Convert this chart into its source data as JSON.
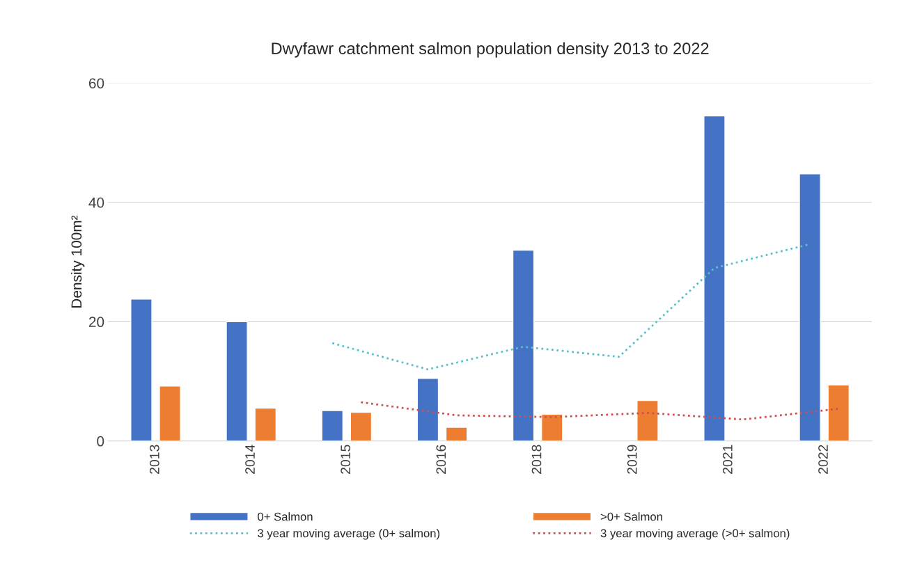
{
  "chart_data": {
    "type": "bar",
    "title": "Dwyfawr catchment salmon population density 2013 to 2022",
    "ylabel": "Density 100m²",
    "categories": [
      "2013",
      "2014",
      "2015",
      "2016",
      "2018",
      "2019",
      "2021",
      "2022"
    ],
    "series": [
      {
        "name": "0+ Salmon",
        "color": "#4472c4",
        "values": [
          23.8,
          20.0,
          5.1,
          10.5,
          32.0,
          null,
          54.5,
          44.8
        ]
      },
      {
        "name": ">0+ Salmon",
        "color": "#ed7d31",
        "values": [
          9.2,
          5.5,
          4.8,
          2.3,
          4.5,
          6.8,
          null,
          9.4
        ]
      },
      {
        "name": "3 year moving average (0+ salmon)",
        "type": "line",
        "line_style": "dotted",
        "color": "#5bc0cd",
        "values": [
          null,
          null,
          16.4,
          12.0,
          15.8,
          14.1,
          29.0,
          33.0
        ]
      },
      {
        "name": "3 year moving average (>0+ salmon)",
        "type": "line",
        "line_style": "dotted",
        "color": "#d05050",
        "values": [
          null,
          null,
          6.5,
          4.3,
          4.0,
          4.7,
          3.6,
          5.4
        ]
      }
    ],
    "ylim": [
      0,
      60
    ],
    "yticks": [
      0,
      20,
      40,
      60
    ],
    "grid": "y",
    "legend": "bottom"
  }
}
